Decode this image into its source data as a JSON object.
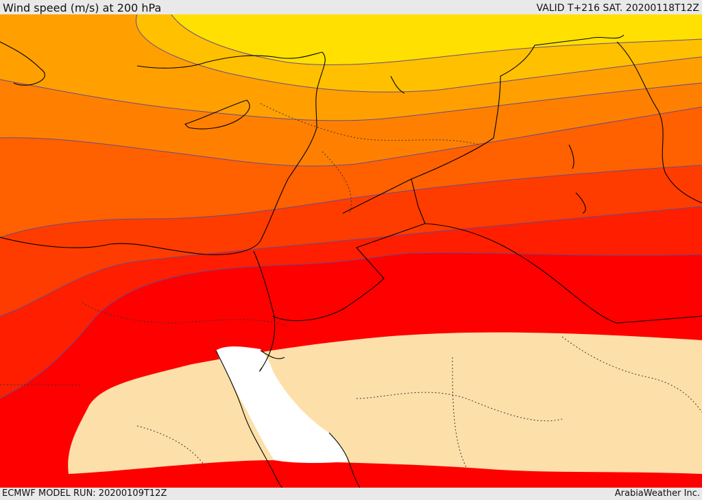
{
  "header": {
    "title": "Wind speed (m/s) at 200 hPa",
    "valid": "VALID T+216 SAT. 20200118T12Z"
  },
  "footer": {
    "model_run": "ECMWF MODEL RUN: 20200109T12Z",
    "credit": "ArabiaWeather Inc."
  },
  "map": {
    "field": "wind speed 200 hPa",
    "colors": {
      "band_1": "#ffe000",
      "band_2": "#ffc000",
      "band_3": "#ffa000",
      "band_4": "#ff8000",
      "band_5": "#ff6000",
      "band_6": "#ff3c00",
      "band_7": "#ff1e00",
      "band_8": "#ff0000",
      "jet_core": "#fde0a9",
      "sea": "#ffffff",
      "contour": "#6a4a8a",
      "coastline": "#000000"
    }
  }
}
